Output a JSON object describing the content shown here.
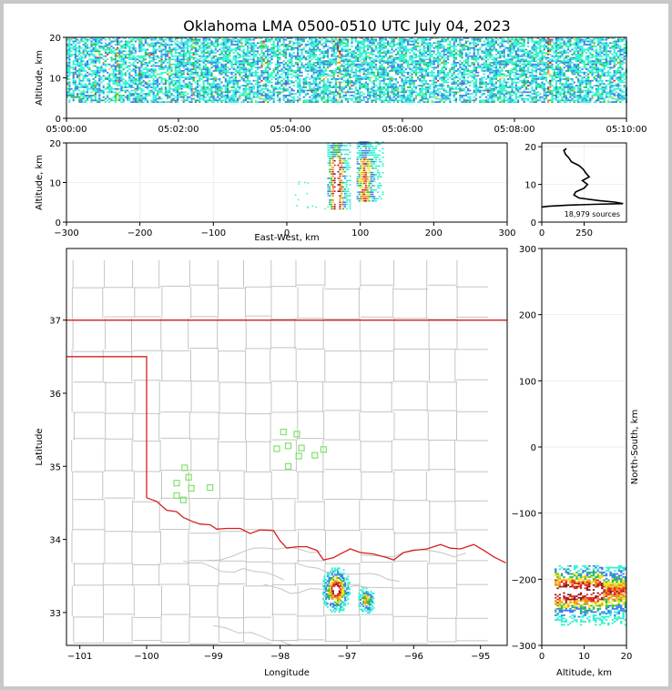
{
  "title": "Oklahoma LMA 0500-0510 UTC July 04, 2023",
  "colors": {
    "border": "#d42020",
    "county": "#c4c4c4",
    "station": "#7fe36a",
    "axis": "#000000",
    "density": [
      "#2ef2d0",
      "#3a7df0",
      "#22c24a",
      "#f0e020",
      "#f08a20",
      "#e02020",
      "#8a1010",
      "#ffffff"
    ]
  },
  "chart_data": [
    {
      "id": "time-height",
      "type": "heatmap",
      "ylabel": "Altitude, km",
      "xticks": [
        "05:00:00",
        "05:02:00",
        "05:04:00",
        "05:06:00",
        "05:08:00",
        "05:10:00"
      ],
      "xlim_minutes": [
        0,
        10
      ],
      "yticks": [
        0,
        10,
        20
      ],
      "ylim": [
        0,
        20
      ],
      "altitude_band_km": [
        4,
        20
      ]
    },
    {
      "id": "ew-height",
      "type": "heatmap",
      "xlabel": "East-West, km",
      "ylabel": "Altitude, km",
      "xticks": [
        -300,
        -200,
        -100,
        0,
        100,
        200,
        300
      ],
      "xlim": [
        -300,
        300
      ],
      "yticks": [
        0,
        10,
        20
      ],
      "ylim": [
        0,
        20
      ],
      "clusters": [
        {
          "x_range": [
            55,
            85
          ],
          "alt_range": [
            3,
            20
          ],
          "core_x": 67
        },
        {
          "x_range": [
            95,
            130
          ],
          "alt_range": [
            5,
            20
          ],
          "core_x": 105
        }
      ]
    },
    {
      "id": "altitude-histogram",
      "type": "line",
      "annotation": "18,979 sources",
      "xticks": [
        0,
        250
      ],
      "xlim": [
        0,
        500
      ],
      "yticks": [
        0,
        10,
        20
      ],
      "ylim": [
        0,
        21
      ],
      "profile": [
        [
          0,
          4.0
        ],
        [
          40,
          4.2
        ],
        [
          150,
          4.5
        ],
        [
          300,
          4.7
        ],
        [
          480,
          4.9
        ],
        [
          430,
          5.3
        ],
        [
          340,
          5.7
        ],
        [
          220,
          6.4
        ],
        [
          190,
          7.2
        ],
        [
          200,
          8.0
        ],
        [
          250,
          9.0
        ],
        [
          270,
          10.0
        ],
        [
          240,
          11.0
        ],
        [
          280,
          12.0
        ],
        [
          260,
          13.0
        ],
        [
          245,
          14.0
        ],
        [
          220,
          15.0
        ],
        [
          175,
          16.0
        ],
        [
          160,
          17.0
        ],
        [
          140,
          18.0
        ],
        [
          130,
          19.0
        ],
        [
          145,
          19.5
        ]
      ]
    },
    {
      "id": "plan-view",
      "type": "scatter",
      "xlabel": "Longitude",
      "ylabel": "Latitude",
      "xticks": [
        -101,
        -100,
        -99,
        -98,
        -97,
        -96,
        -95
      ],
      "xlim": [
        -101.2,
        -94.6
      ],
      "yticks": [
        33,
        34,
        35,
        36,
        37
      ],
      "ylim": [
        32.55,
        37.98
      ],
      "stations": [
        [
          -97.95,
          35.47
        ],
        [
          -97.75,
          35.44
        ],
        [
          -97.88,
          35.28
        ],
        [
          -98.05,
          35.24
        ],
        [
          -97.68,
          35.25
        ],
        [
          -97.72,
          35.14
        ],
        [
          -97.48,
          35.15
        ],
        [
          -97.35,
          35.23
        ],
        [
          -97.88,
          35.0
        ],
        [
          -99.43,
          34.98
        ],
        [
          -99.55,
          34.77
        ],
        [
          -99.37,
          34.85
        ],
        [
          -99.33,
          34.7
        ],
        [
          -99.05,
          34.71
        ],
        [
          -99.55,
          34.6
        ],
        [
          -99.45,
          34.54
        ]
      ],
      "storms": [
        {
          "lon": -97.17,
          "lat": 33.32,
          "size": 1.0
        },
        {
          "lon": -96.72,
          "lat": 33.18,
          "size": 0.6
        }
      ]
    },
    {
      "id": "ns-height",
      "type": "heatmap",
      "xlabel": "Altitude, km",
      "ylabel": "North-South, km",
      "xticks": [
        0,
        10,
        20
      ],
      "xlim": [
        0,
        20
      ],
      "yticks": [
        -300,
        -200,
        -100,
        0,
        100,
        200,
        300
      ],
      "ylim": [
        -300,
        300
      ],
      "cluster": {
        "ns_range": [
          -270,
          -180
        ],
        "alt_range": [
          3,
          20
        ],
        "core_ns": -220
      }
    }
  ]
}
